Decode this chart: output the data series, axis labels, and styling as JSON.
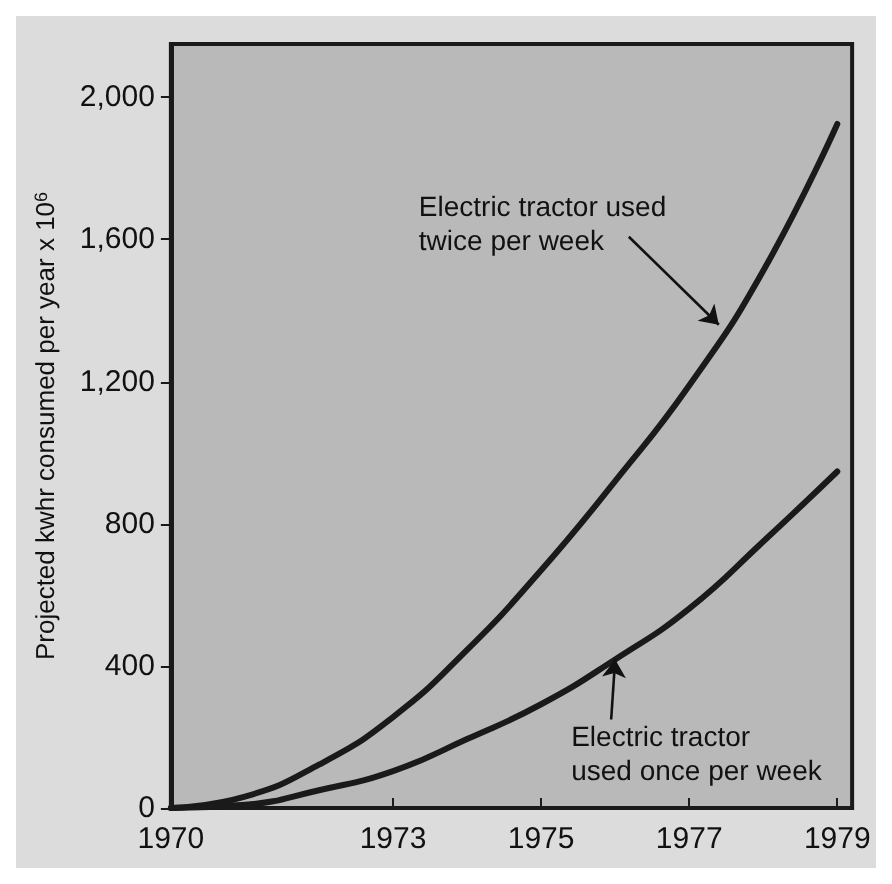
{
  "chart_data": {
    "type": "line",
    "ylabel": "Projected kwhr consumed per year x 10$^{6}$",
    "x": [
      1970,
      1971,
      1972,
      1973,
      1974,
      1975,
      1976,
      1977,
      1978,
      1979
    ],
    "series": [
      {
        "color": "#1a1a1a",
        "values": [
          0,
          32,
          122,
          256,
          445,
          669,
          920,
          1189,
          1512,
          1925
        ]
      },
      {
        "color": "#1a1a1a",
        "values": [
          0,
          9,
          50,
          104,
          194,
          292,
          418,
          561,
          750,
          947
        ]
      }
    ],
    "xlim": [
      1970,
      1979.2
    ],
    "ylim": [
      0,
      2150
    ],
    "xticks": [
      1970,
      1973,
      1975,
      1977,
      1979
    ],
    "yticks": [
      0,
      400,
      800,
      {
        "value": 1200,
        "label": "1,200"
      },
      {
        "value": 1600,
        "label": "1,600"
      },
      {
        "value": 2000,
        "label": "2,000"
      }
    ],
    "annotations": [
      {
        "text": "Electric tractor used twice per week",
        "x": 1977.4,
        "y": 1360
      },
      {
        "text": "Electric tractor used once per week",
        "x": 1976,
        "y": 418
      }
    ],
    "grid": false,
    "marker": "none",
    "line_style": "solid"
  }
}
